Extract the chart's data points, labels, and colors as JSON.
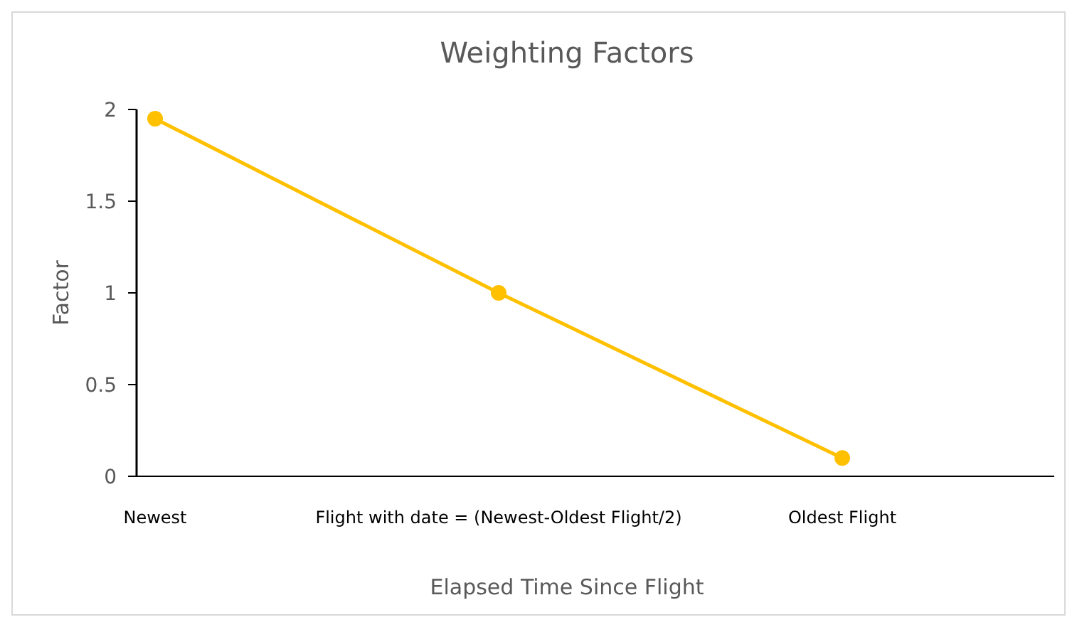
{
  "chart_data": {
    "type": "line",
    "title": "Weighting Factors",
    "xlabel": "Elapsed Time Since Flight",
    "ylabel": "Factor",
    "categories": [
      "Newest",
      "Flight with date = (Newest-Oldest Flight/2)",
      "Oldest Flight"
    ],
    "ylim": [
      0,
      2
    ],
    "yticks": [
      0,
      0.5,
      1,
      1.5,
      2
    ],
    "grid": false,
    "marker": "circle",
    "series": [
      {
        "color": "#ffc000",
        "values": [
          1.95,
          1.0,
          0.1
        ]
      }
    ]
  }
}
